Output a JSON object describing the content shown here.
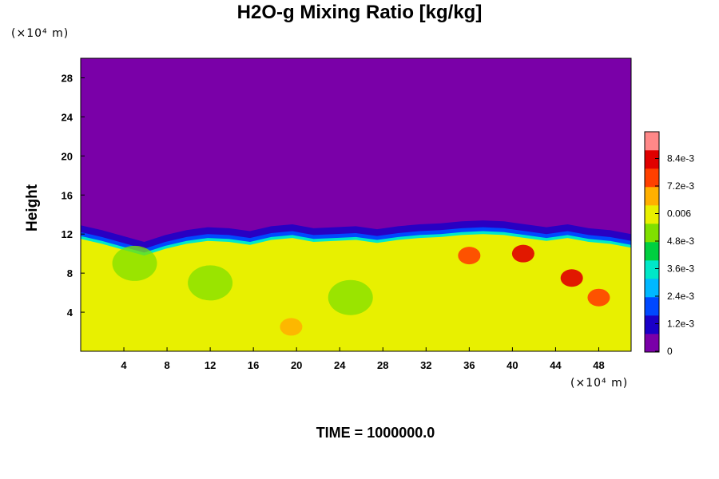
{
  "chart_data": {
    "type": "heatmap",
    "title": "H2O-g Mixing Ratio [kg/kg]",
    "ylabel": "Height",
    "y_unit": "(×10⁴ m)",
    "x_unit": "(×10⁴ m)",
    "footer": "TIME = 1000000.0",
    "x_ticks": [
      "4",
      "8",
      "12",
      "16",
      "20",
      "24",
      "28",
      "32",
      "36",
      "40",
      "44",
      "48"
    ],
    "y_ticks": [
      "4",
      "8",
      "12",
      "16",
      "20",
      "24",
      "28"
    ],
    "xlim": [
      0,
      51
    ],
    "ylim": [
      0,
      30
    ],
    "colorbar": {
      "labels": [
        "0",
        "1.2e-3",
        "2.4e-3",
        "3.6e-3",
        "4.8e-3",
        "0.006",
        "7.2e-3",
        "8.4e-3"
      ],
      "range": [
        0,
        0.0096
      ],
      "colors": [
        "#7a00a8",
        "#1a00c8",
        "#0048ff",
        "#00b8ff",
        "#00e8c8",
        "#00d040",
        "#80e000",
        "#e8f000",
        "#ffb000",
        "#ff4000",
        "#e00000",
        "#ff8888"
      ]
    },
    "field": {
      "description_free": true,
      "upper_value": 0,
      "lower_value": 0.0061,
      "interface_height": [
        11.5,
        11.0,
        10.4,
        9.8,
        10.5,
        11.0,
        11.3,
        11.2,
        10.9,
        11.4,
        11.6,
        11.2,
        11.3,
        11.4,
        11.1,
        11.4,
        11.6,
        11.7,
        11.9,
        12.0,
        11.9,
        11.6,
        11.3,
        11.6,
        11.2,
        11.0,
        10.6
      ],
      "hotspots": [
        {
          "x": 45.5,
          "y": 7.5,
          "value": 0.0085
        },
        {
          "x": 41.0,
          "y": 10.0,
          "value": 0.0082
        },
        {
          "x": 36.0,
          "y": 9.8,
          "value": 0.0075
        },
        {
          "x": 48.0,
          "y": 5.5,
          "value": 0.0073
        },
        {
          "x": 19.5,
          "y": 2.5,
          "value": 0.0068
        }
      ],
      "cool_spots": [
        {
          "x": 25.0,
          "y": 5.5,
          "value": 0.0052
        },
        {
          "x": 12.0,
          "y": 7.0,
          "value": 0.0055
        },
        {
          "x": 5.0,
          "y": 9.0,
          "value": 0.0054
        }
      ]
    }
  }
}
